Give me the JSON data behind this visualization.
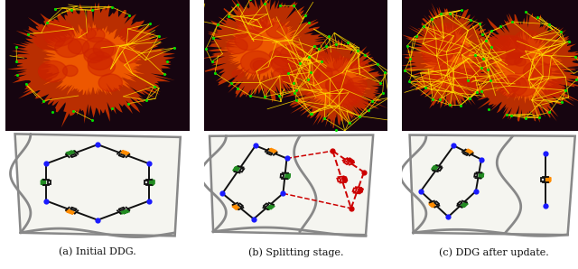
{
  "captions": [
    "(a) Initial DDG.",
    "(b) Splitting stage.",
    "(c) DDG after update."
  ],
  "caption_fontsize": 8.0,
  "background_color": "#ffffff",
  "fig_width": 6.4,
  "fig_height": 2.98,
  "diagram_colors": {
    "black": "#111111",
    "green": "#228B22",
    "orange": "#FF8C00",
    "blue": "#1a1aff",
    "red": "#CC0000",
    "gray": "#888888",
    "paper": "#f5f5f0"
  },
  "top_bg": "#160510"
}
